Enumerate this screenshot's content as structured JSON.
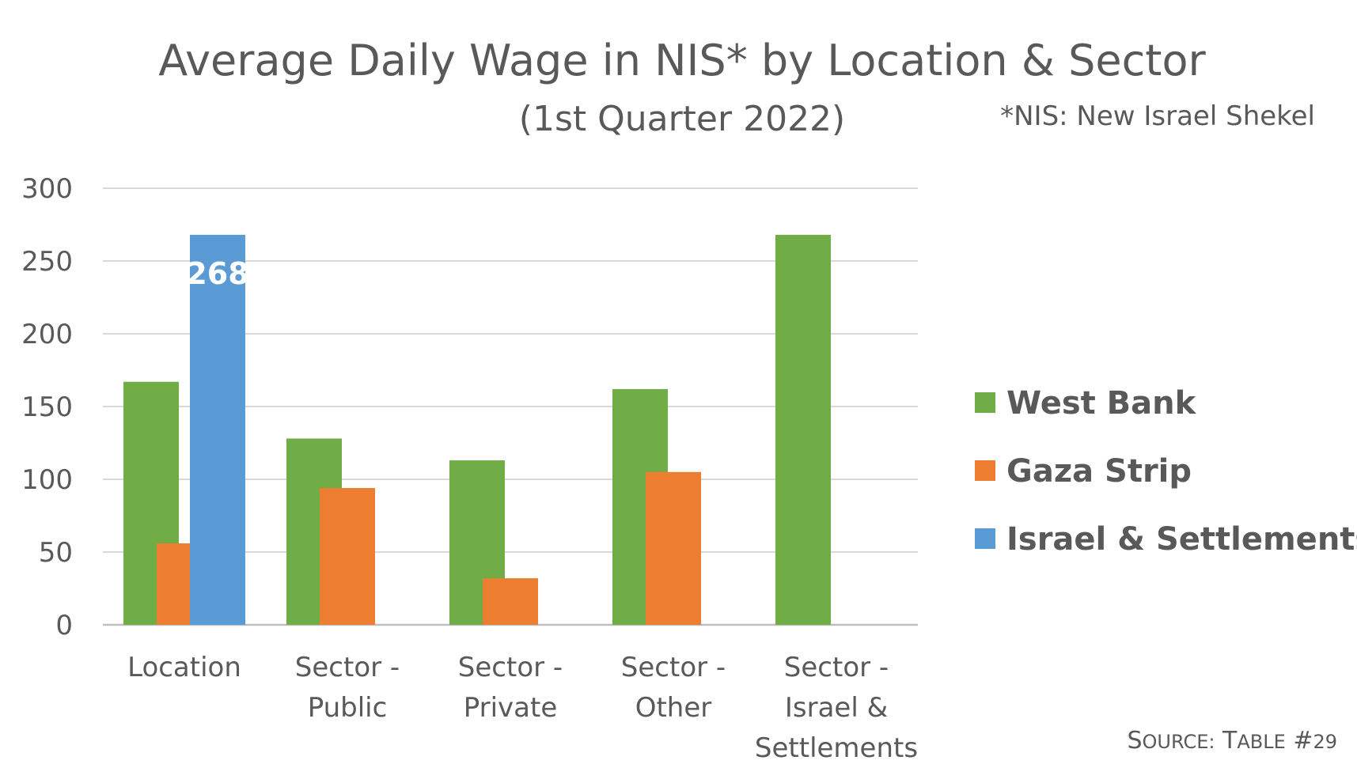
{
  "chart_data": {
    "type": "bar",
    "title": "Average Daily Wage in NIS* by Location & Sector",
    "subtitle": "(1st Quarter 2022)",
    "footnote": "*NIS: New Israel Shekel",
    "source": "SOURCE: TABLE #29",
    "categories": [
      [
        "Location"
      ],
      [
        "Sector -",
        "Public"
      ],
      [
        "Sector -",
        "Private"
      ],
      [
        "Sector -",
        "Other"
      ],
      [
        "Sector -",
        "Israel &",
        "Settlements"
      ]
    ],
    "series": [
      {
        "name": "West Bank",
        "color": "#70AD47",
        "values": [
          167,
          128,
          113,
          162,
          268
        ]
      },
      {
        "name": "Gaza Strip",
        "color": "#ED7D31",
        "values": [
          56,
          94,
          32,
          105,
          null
        ]
      },
      {
        "name": "Israel & Settlements",
        "color": "#5B9BD5",
        "values": [
          268,
          null,
          null,
          null,
          null
        ]
      }
    ],
    "data_labels": [
      {
        "series": 2,
        "category": 0,
        "text": "268"
      }
    ],
    "ylim": [
      0,
      300
    ],
    "yticks": [
      0,
      50,
      100,
      150,
      200,
      250,
      300
    ],
    "grid": true,
    "legend_position": "right"
  }
}
